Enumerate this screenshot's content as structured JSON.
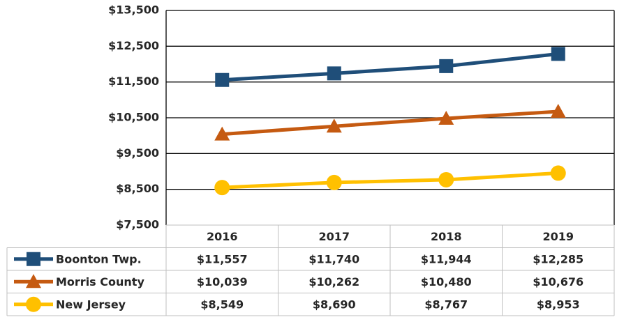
{
  "chart_data": {
    "type": "line",
    "categories": [
      "2016",
      "2017",
      "2018",
      "2019"
    ],
    "series": [
      {
        "name": "Boonton Twp.",
        "color": "#1f4e79",
        "marker": "square",
        "values": [
          11557,
          11740,
          11944,
          12285
        ],
        "value_labels": [
          "$11,557",
          "$11,740",
          "$11,944",
          "$12,285"
        ]
      },
      {
        "name": "Morris County",
        "color": "#c55a11",
        "marker": "triangle",
        "values": [
          10039,
          10262,
          10480,
          10676
        ],
        "value_labels": [
          "$10,039",
          "$10,262",
          "$10,480",
          "$10,676"
        ]
      },
      {
        "name": "New Jersey",
        "color": "#ffc000",
        "marker": "circle",
        "values": [
          8549,
          8690,
          8767,
          8953
        ],
        "value_labels": [
          "$8,549",
          "$8,690",
          "$8,767",
          "$8,953"
        ]
      }
    ],
    "ylim": [
      7500,
      13500
    ],
    "yticks": [
      {
        "value": 7500,
        "label": "$7,500"
      },
      {
        "value": 8500,
        "label": "$8,500"
      },
      {
        "value": 9500,
        "label": "$9,500"
      },
      {
        "value": 10500,
        "label": "$10,500"
      },
      {
        "value": 11500,
        "label": "$11,500"
      },
      {
        "value": 12500,
        "label": "$12,500"
      },
      {
        "value": 13500,
        "label": "$13,500"
      }
    ],
    "grid": true
  }
}
